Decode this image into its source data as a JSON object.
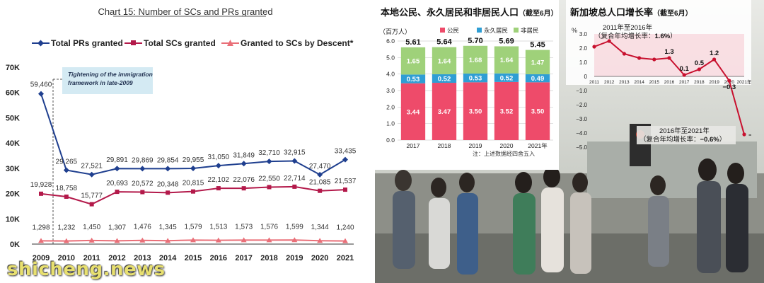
{
  "watermark": "shicheng.news",
  "chart_data": [
    {
      "type": "line",
      "title": "Chart 15: Number of SCs and PRs granted",
      "x": [
        "2009",
        "2010",
        "2011",
        "2012",
        "2013",
        "2014",
        "2015",
        "2016",
        "2017",
        "2018",
        "2019",
        "2020",
        "2021"
      ],
      "series": [
        {
          "name": "Total PRs granted",
          "color": "#1f3f8f",
          "marker": "diamond",
          "values": [
            59460,
            29265,
            27521,
            29891,
            29869,
            29854,
            29955,
            31050,
            31849,
            32710,
            32915,
            27470,
            33435
          ]
        },
        {
          "name": "Total SCs granted",
          "color": "#b3194a",
          "marker": "square",
          "values": [
            19928,
            18758,
            15777,
            20693,
            20572,
            20348,
            20815,
            22102,
            22076,
            22550,
            22714,
            21085,
            21537
          ]
        },
        {
          "name": "Granted to SCs by Descent*",
          "color": "#e96f78",
          "marker": "triangle",
          "values": [
            1298,
            1232,
            1450,
            1307,
            1476,
            1345,
            1579,
            1513,
            1573,
            1576,
            1599,
            1344,
            1240
          ]
        }
      ],
      "data_labels": [
        [
          "59,460",
          "29,265",
          "27,521",
          "29,891",
          "29,869",
          "29,854",
          "29,955",
          "31,050",
          "31,849",
          "32,710",
          "32,915",
          "27,470",
          "33,435"
        ],
        [
          "19,928",
          "18,758",
          "15,777",
          "20,693",
          "20,572",
          "20,348",
          "20,815",
          "22,102",
          "22,076",
          "22,550",
          "22,714",
          "21,085",
          "21,537"
        ],
        [
          "1,298",
          "1,232",
          "1,450",
          "1,307",
          "1,476",
          "1,345",
          "1,579",
          "1,513",
          "1,573",
          "1,576",
          "1,599",
          "1,344",
          "1,240"
        ]
      ],
      "yticks": [
        "0K",
        "10K",
        "20K",
        "30K",
        "40K",
        "50K",
        "60K",
        "70K"
      ],
      "ylim": [
        0,
        70000
      ],
      "annotation": "Tightening of the immigration framework in late-2009",
      "grid": false,
      "legend": "top"
    },
    {
      "type": "bar",
      "title": "本地公民、永久居民和非居民人口",
      "title_note": "（截至6月）",
      "ylabel": "（百万人）",
      "categories": [
        "2017",
        "2018",
        "2019",
        "2020",
        "2021年"
      ],
      "series": [
        {
          "name": "公民",
          "color": "#ee4b6a",
          "values": [
            3.44,
            3.47,
            3.5,
            3.52,
            3.5
          ],
          "labels": [
            "3.44",
            "3.47",
            "3.50",
            "3.52",
            "3.50"
          ]
        },
        {
          "name": "永久居民",
          "color": "#2f9ed4",
          "values": [
            0.53,
            0.52,
            0.53,
            0.52,
            0.49
          ],
          "labels": [
            "0.53",
            "0.52",
            "0.53",
            "0.52",
            "0.49"
          ]
        },
        {
          "name": "非居民",
          "color": "#9fd17a",
          "values": [
            1.65,
            1.64,
            1.68,
            1.64,
            1.47
          ],
          "labels": [
            "1.65",
            "1.64",
            "1.68",
            "1.64",
            "1.47"
          ]
        }
      ],
      "totals": [
        5.61,
        5.64,
        5.7,
        5.69,
        5.45
      ],
      "total_labels": [
        "5.61",
        "5.64",
        "5.70",
        "5.69",
        "5.45"
      ],
      "yticks": [
        "0.0",
        "1.0",
        "2.0",
        "3.0",
        "4.0",
        "5.0",
        "6.0"
      ],
      "ylim": [
        0,
        6
      ],
      "note": "注：上述数据经四舍五入",
      "grid": true
    },
    {
      "type": "line",
      "title": "新加坡总人口增长率",
      "title_note": "（截至6月）",
      "ylabel": "%",
      "x": [
        "2011",
        "2012",
        "2013",
        "2014",
        "2015",
        "2016",
        "2017",
        "2018",
        "2019",
        "2020",
        "2021年"
      ],
      "values": [
        2.1,
        2.5,
        1.6,
        1.3,
        1.2,
        1.3,
        0.1,
        0.5,
        1.2,
        -0.3,
        -4.1
      ],
      "point_labels": {
        "5": "1.3",
        "6": "0.1",
        "7": "0.5",
        "8": "1.2",
        "9": "−0.3",
        "10": "−4.1"
      },
      "yticks": [
        "3.0",
        "2.0",
        "1.0",
        "0",
        "−1.0",
        "−2.0",
        "−3.0",
        "−4.0",
        "−5.0"
      ],
      "ylim": [
        -5,
        3
      ],
      "annotations": [
        {
          "text_line1": "2011年至2016年",
          "text_line2": "（复合年均增长率：",
          "value": "1.6%",
          "close": "）"
        },
        {
          "text_line1": "2016年至2021年",
          "text_line2": "（复合年均增长率：",
          "value": "−0.6%",
          "close": "）"
        }
      ],
      "color": "#c8102e"
    }
  ]
}
